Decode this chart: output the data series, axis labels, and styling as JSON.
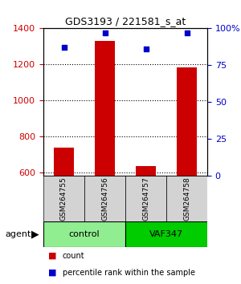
{
  "title": "GDS3193 / 221581_s_at",
  "samples": [
    "GSM264755",
    "GSM264756",
    "GSM264757",
    "GSM264758"
  ],
  "counts": [
    740,
    1330,
    635,
    1185
  ],
  "percentile_ranks": [
    87,
    97,
    86,
    97
  ],
  "groups": [
    "control",
    "control",
    "VAF347",
    "VAF347"
  ],
  "group_colors": {
    "control": "#90EE90",
    "VAF347": "#00CC00"
  },
  "ylim_left": [
    580,
    1400
  ],
  "ylim_right": [
    0,
    100
  ],
  "right_ticks": [
    0,
    25,
    50,
    75,
    100
  ],
  "right_tick_labels": [
    "0",
    "25",
    "50",
    "75",
    "100%"
  ],
  "left_ticks": [
    600,
    800,
    1000,
    1200,
    1400
  ],
  "bar_color": "#CC0000",
  "dot_color": "#0000CC",
  "background_color": "#ffffff",
  "plot_bg_color": "#ffffff",
  "agent_label": "agent",
  "legend_count_label": "count",
  "legend_pct_label": "percentile rank within the sample"
}
